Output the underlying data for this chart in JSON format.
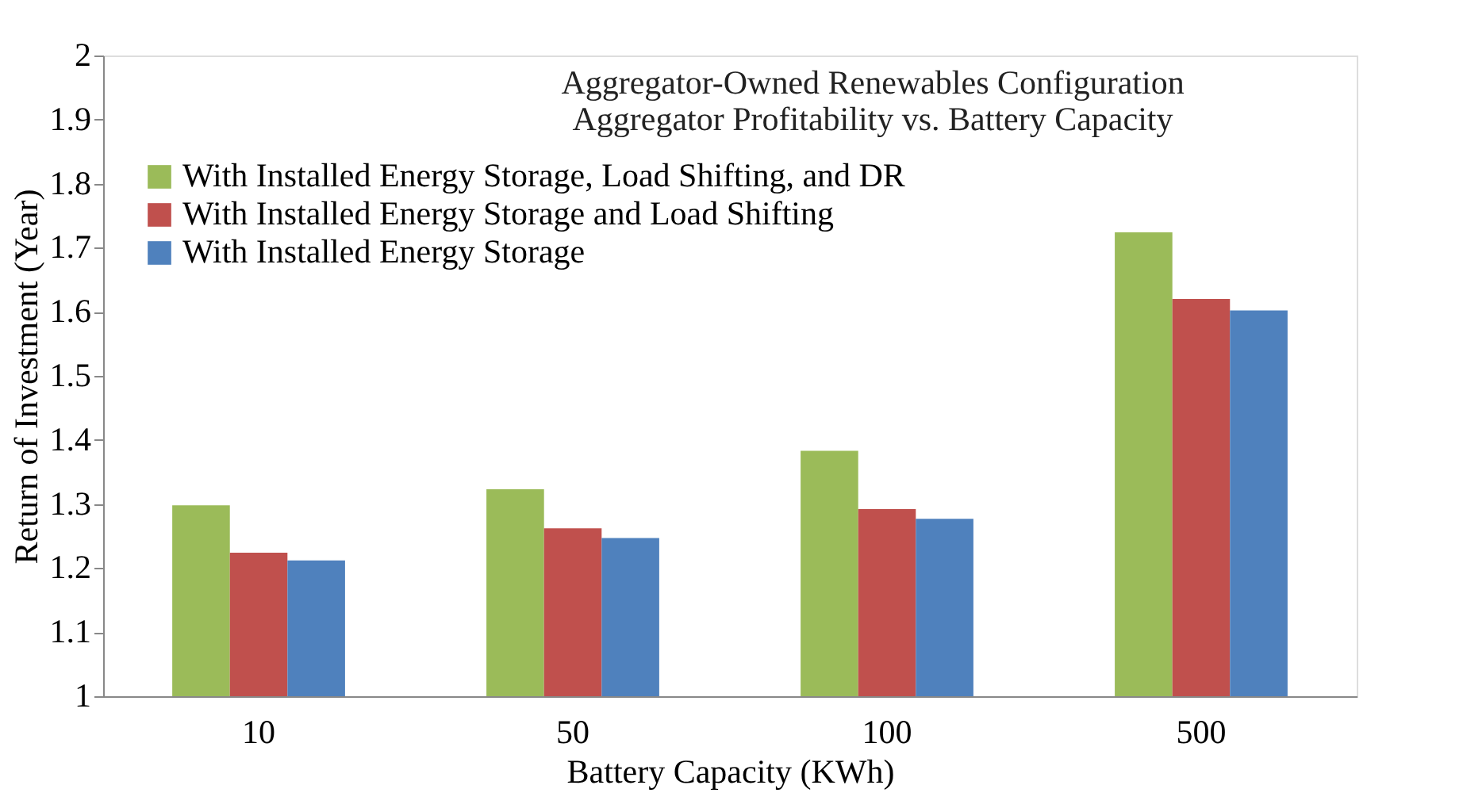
{
  "chart_data": {
    "type": "bar",
    "title": "Aggregator-Owned Renewables Configuration\nAggregator Profitability vs. Battery Capacity",
    "xlabel": "Battery Capacity (KWh)",
    "ylabel": "Return of Investment (Year)",
    "categories": [
      "10",
      "50",
      "100",
      "500"
    ],
    "series": [
      {
        "name": "With Installed Energy Storage, Load Shifting, and DR",
        "color": "#9bbb59",
        "values": [
          1.298,
          1.323,
          1.383,
          1.724
        ]
      },
      {
        "name": "With Installed Energy Storage and Load Shifting",
        "color": "#c0504d",
        "values": [
          1.224,
          1.262,
          1.292,
          1.62
        ]
      },
      {
        "name": "With Installed Energy Storage",
        "color": "#4f81bd",
        "values": [
          1.212,
          1.247,
          1.277,
          1.602
        ]
      }
    ],
    "ylim": [
      1,
      2
    ],
    "yticks": [
      {
        "value": 1,
        "label": "1"
      },
      1.1,
      1.2,
      1.3,
      1.4,
      1.5,
      1.6,
      1.7,
      1.8,
      1.9,
      {
        "value": 2,
        "label": "2"
      }
    ],
    "grid": false,
    "legend": "top left"
  }
}
